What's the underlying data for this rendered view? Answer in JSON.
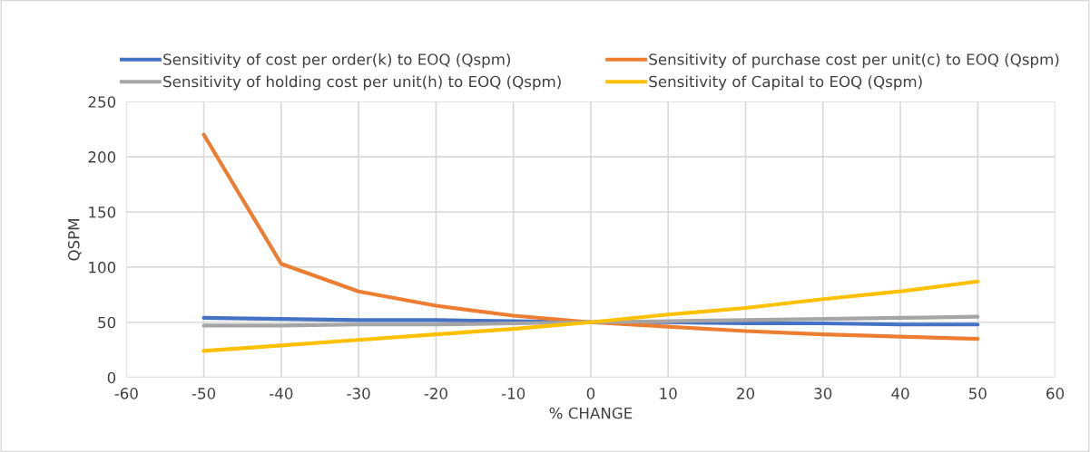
{
  "chart_data": {
    "type": "line",
    "xlabel": "% CHANGE",
    "ylabel": "QSPM",
    "x": [
      -50,
      -40,
      -30,
      -20,
      -10,
      0,
      10,
      20,
      30,
      40,
      50
    ],
    "series": [
      {
        "name": "Sensitivity of cost per order(k) to EOQ (Qspm)",
        "color": "#4472c4",
        "values": [
          54,
          53,
          52,
          52,
          51,
          50,
          50,
          49,
          49,
          48,
          48
        ]
      },
      {
        "name": "Sensitivity of purchase cost per unit(c) to EOQ (Qspm)",
        "color": "#ed7d31",
        "values": [
          220,
          103,
          78,
          65,
          56,
          50,
          46,
          42,
          39,
          37,
          35
        ]
      },
      {
        "name": "Sensitivity of holding cost per unit(h) to EOQ (Qspm)",
        "color": "#a5a5a5",
        "values": [
          47,
          47,
          48,
          48,
          49,
          50,
          51,
          52,
          53,
          54,
          55
        ]
      },
      {
        "name": "Sensitivity of Capital to EOQ (Qspm)",
        "color": "#ffc000",
        "values": [
          24,
          29,
          34,
          39,
          44,
          50,
          57,
          63,
          71,
          78,
          87
        ]
      }
    ],
    "xlim": [
      -60,
      60
    ],
    "xticks": [
      -60,
      -50,
      -40,
      -30,
      -20,
      -10,
      0,
      10,
      20,
      30,
      40,
      50,
      60
    ],
    "ylim": [
      0,
      250
    ],
    "yticks": [
      0,
      50,
      100,
      150,
      200,
      250
    ],
    "grid": true,
    "legend": "top",
    "marker": "none",
    "line_style": "solid"
  }
}
